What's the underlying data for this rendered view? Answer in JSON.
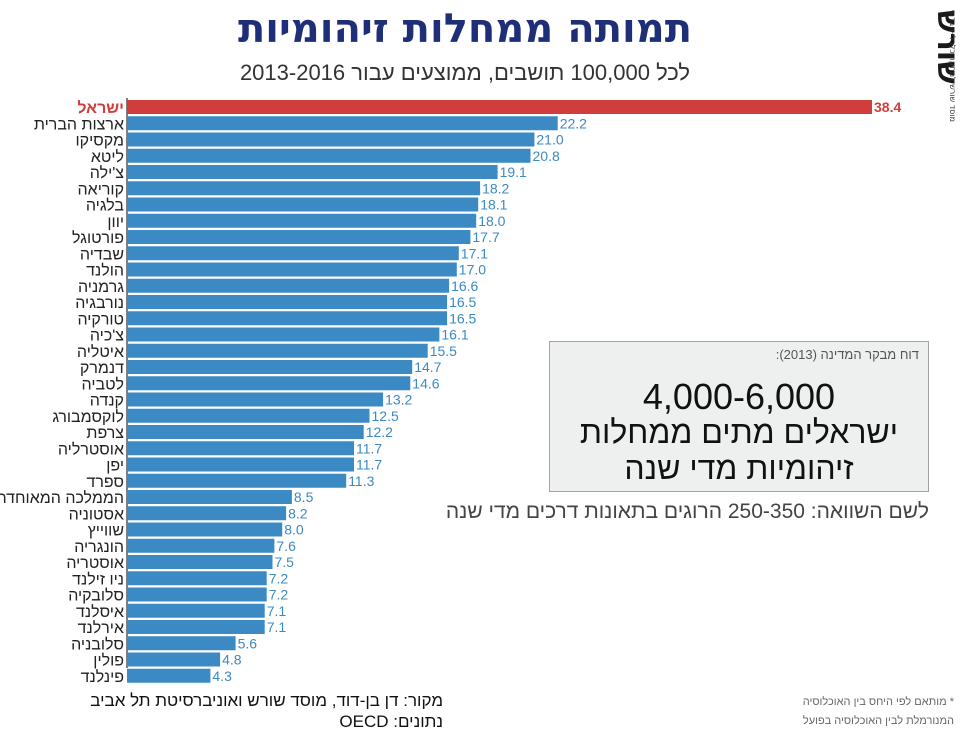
{
  "header": {
    "title": "תמותה ממחלות זיהומיות",
    "subtitle": "לכל 100,000 תושבים, ממוצעים עבור 2013-2016"
  },
  "logo": {
    "wordmark": "שורש",
    "tagline": "מוסד שורש למחקר כלכלי-חברתי"
  },
  "callout": {
    "source": "דוח מבקר המדינה (2013):",
    "headline": "4,000-6,000",
    "line2": "ישראלים מתים ממחלות",
    "line3": "זיהומיות מדי שנה"
  },
  "comparison": "לשם השוואה: 250-350 הרוגים בתאונות דרכים מדי שנה",
  "source": {
    "line1": "מקור:  דן בן-דוד, מוסד שורש ואוניברסיטת תל אביב",
    "line2": "נתונים: OECD"
  },
  "footnote": {
    "line1": "* מותאם לפי היחס בין האוכלוסיה",
    "line2": "המנורמלת לבין האוכלוסיה בפועל"
  },
  "colors": {
    "highlight": "#d13d3a",
    "bar": "#3b8ac4",
    "title": "#1f2e78"
  },
  "chart_data": {
    "type": "bar",
    "orientation": "horizontal",
    "highlight_category": "ישראל",
    "xlim": [
      0,
      38.4
    ],
    "categories": [
      "ישראל",
      "ארצות הברית",
      "מקסיקו",
      "ליטא",
      "צ'ילה",
      "קוריאה",
      "בלגיה",
      "יוון",
      "פורטוגל",
      "שבדיה",
      "הולנד",
      "גרמניה",
      "נורבגיה",
      "טורקיה",
      "צ'כיה",
      "איטליה",
      "דנמרק",
      "לטביה",
      "קנדה",
      "לוקסמבורג",
      "צרפת",
      "אוסטרליה",
      "יפן",
      "ספרד",
      "הממלכה המאוחדת",
      "אסטוניה",
      "שווייץ",
      "הונגריה",
      "אוסטריה",
      "ניו זילנד",
      "סלובקיה",
      "איסלנד",
      "אירלנד",
      "סלובניה",
      "פולין",
      "פינלנד"
    ],
    "values": [
      38.4,
      22.2,
      21.0,
      20.8,
      19.1,
      18.2,
      18.1,
      18.0,
      17.7,
      17.1,
      17.0,
      16.6,
      16.5,
      16.5,
      16.1,
      15.5,
      14.7,
      14.6,
      13.2,
      12.5,
      12.2,
      11.7,
      11.7,
      11.3,
      8.5,
      8.2,
      8.0,
      7.6,
      7.5,
      7.2,
      7.2,
      7.1,
      7.1,
      5.6,
      4.8,
      4.3
    ],
    "value_labels": [
      "38.4",
      "22.2",
      "21.0",
      "20.8",
      "19.1",
      "18.2",
      "18.1",
      "18.0",
      "17.7",
      "17.1",
      "17.0",
      "16.6",
      "16.5",
      "16.5",
      "16.1",
      "15.5",
      "14.7",
      "14.6",
      "13.2",
      "12.5",
      "12.2",
      "11.7",
      "11.7",
      "11.3",
      "8.5",
      "8.2",
      "8.0",
      "7.6",
      "7.5",
      "7.2",
      "7.2",
      "7.1",
      "7.1",
      "5.6",
      "4.8",
      "4.3"
    ]
  }
}
